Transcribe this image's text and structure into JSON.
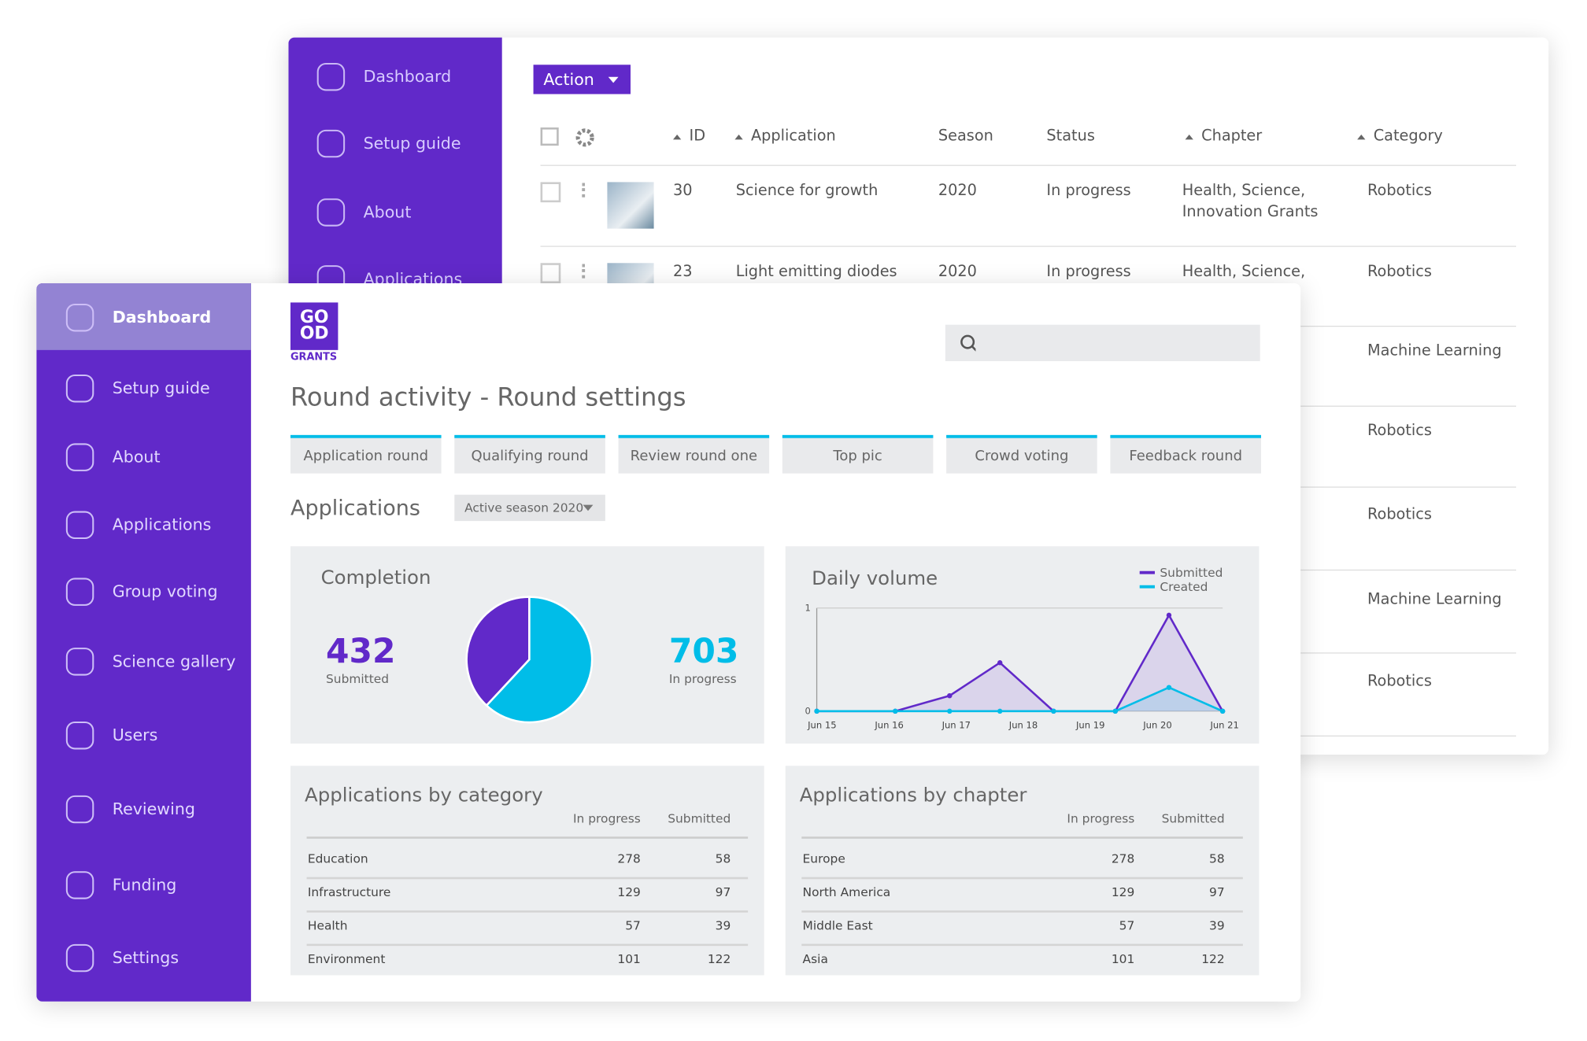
{
  "back_window": {
    "sidebar": [
      "Dashboard",
      "Setup guide",
      "About",
      "Applications"
    ],
    "action_button": "Action",
    "table": {
      "headers": [
        "ID",
        "Application",
        "Season",
        "Status",
        "Chapter",
        "Category"
      ],
      "rows": [
        [
          30,
          "Science for growth",
          2020,
          "In progress",
          "Health, Science, Innovation Grants",
          "Robotics"
        ],
        [
          23,
          "Light emitting diodes",
          2020,
          "In progress",
          "Health, Science,",
          "Robotics"
        ]
      ],
      "more_categories": [
        "Machine Learning",
        "Robotics",
        "Robotics",
        "Machine Learning",
        "Robotics"
      ]
    }
  },
  "sidebar": [
    "Dashboard",
    "Setup guide",
    "About",
    "Applications",
    "Group voting",
    "Science gallery",
    "Users",
    "Reviewing",
    "Funding",
    "Settings"
  ],
  "logo": {
    "top": "GO",
    "bottom": "OD",
    "sub": "GRANTS"
  },
  "page_title": "Round activity - Round settings",
  "tabs": [
    "Application round",
    "Qualifying round",
    "Review round one",
    "Top pic",
    "Crowd voting",
    "Feedback round"
  ],
  "section_title": "Applications",
  "season_filter": "Active season 2020",
  "chart_data": [
    {
      "type": "pie",
      "title": "Completion",
      "categories": [
        "Submitted",
        "In progress"
      ],
      "values": [
        432,
        703
      ],
      "colors": [
        "#6129c9",
        "#00bde8"
      ]
    },
    {
      "type": "line",
      "title": "Daily volume",
      "x": [
        -0.08,
        1.09,
        1.9,
        2.65,
        3.45,
        4.37,
        5.17,
        5.97
      ],
      "xlim": [
        -0.08,
        5.97
      ],
      "xticks": [
        {
          "value": 0,
          "label": "Jun 15"
        },
        {
          "value": 1,
          "label": "Jun 16"
        },
        {
          "value": 2,
          "label": "Jun 17"
        },
        {
          "value": 3,
          "label": "Jun 18"
        },
        {
          "value": 4,
          "label": "Jun 19"
        },
        {
          "value": 5,
          "label": "Jun 20"
        },
        {
          "value": 6,
          "label": "Jun 21"
        }
      ],
      "ylim": [
        0,
        1
      ],
      "yticks": [
        0,
        1
      ],
      "legend": "top-right",
      "series": [
        {
          "name": "Submitted",
          "color": "#6129c9",
          "values": [
            0,
            0,
            0.15,
            0.47,
            0,
            0,
            0.93,
            0
          ]
        },
        {
          "name": "Created",
          "color": "#00bde8",
          "values": [
            0,
            0,
            0,
            0,
            0,
            0,
            0.23,
            0
          ]
        }
      ]
    }
  ],
  "tables": [
    {
      "title": "Applications by category",
      "headers": [
        "In progress",
        "Submitted"
      ],
      "rows": [
        [
          "Education",
          278,
          58
        ],
        [
          "Infrastructure",
          129,
          97
        ],
        [
          "Health",
          57,
          39
        ],
        [
          "Environment",
          101,
          122
        ]
      ]
    },
    {
      "title": "Applications by chapter",
      "headers": [
        "In progress",
        "Submitted"
      ],
      "rows": [
        [
          "Europe",
          278,
          58
        ],
        [
          "North America",
          129,
          97
        ],
        [
          "Middle East",
          57,
          39
        ],
        [
          "Asia",
          101,
          122
        ]
      ]
    }
  ]
}
